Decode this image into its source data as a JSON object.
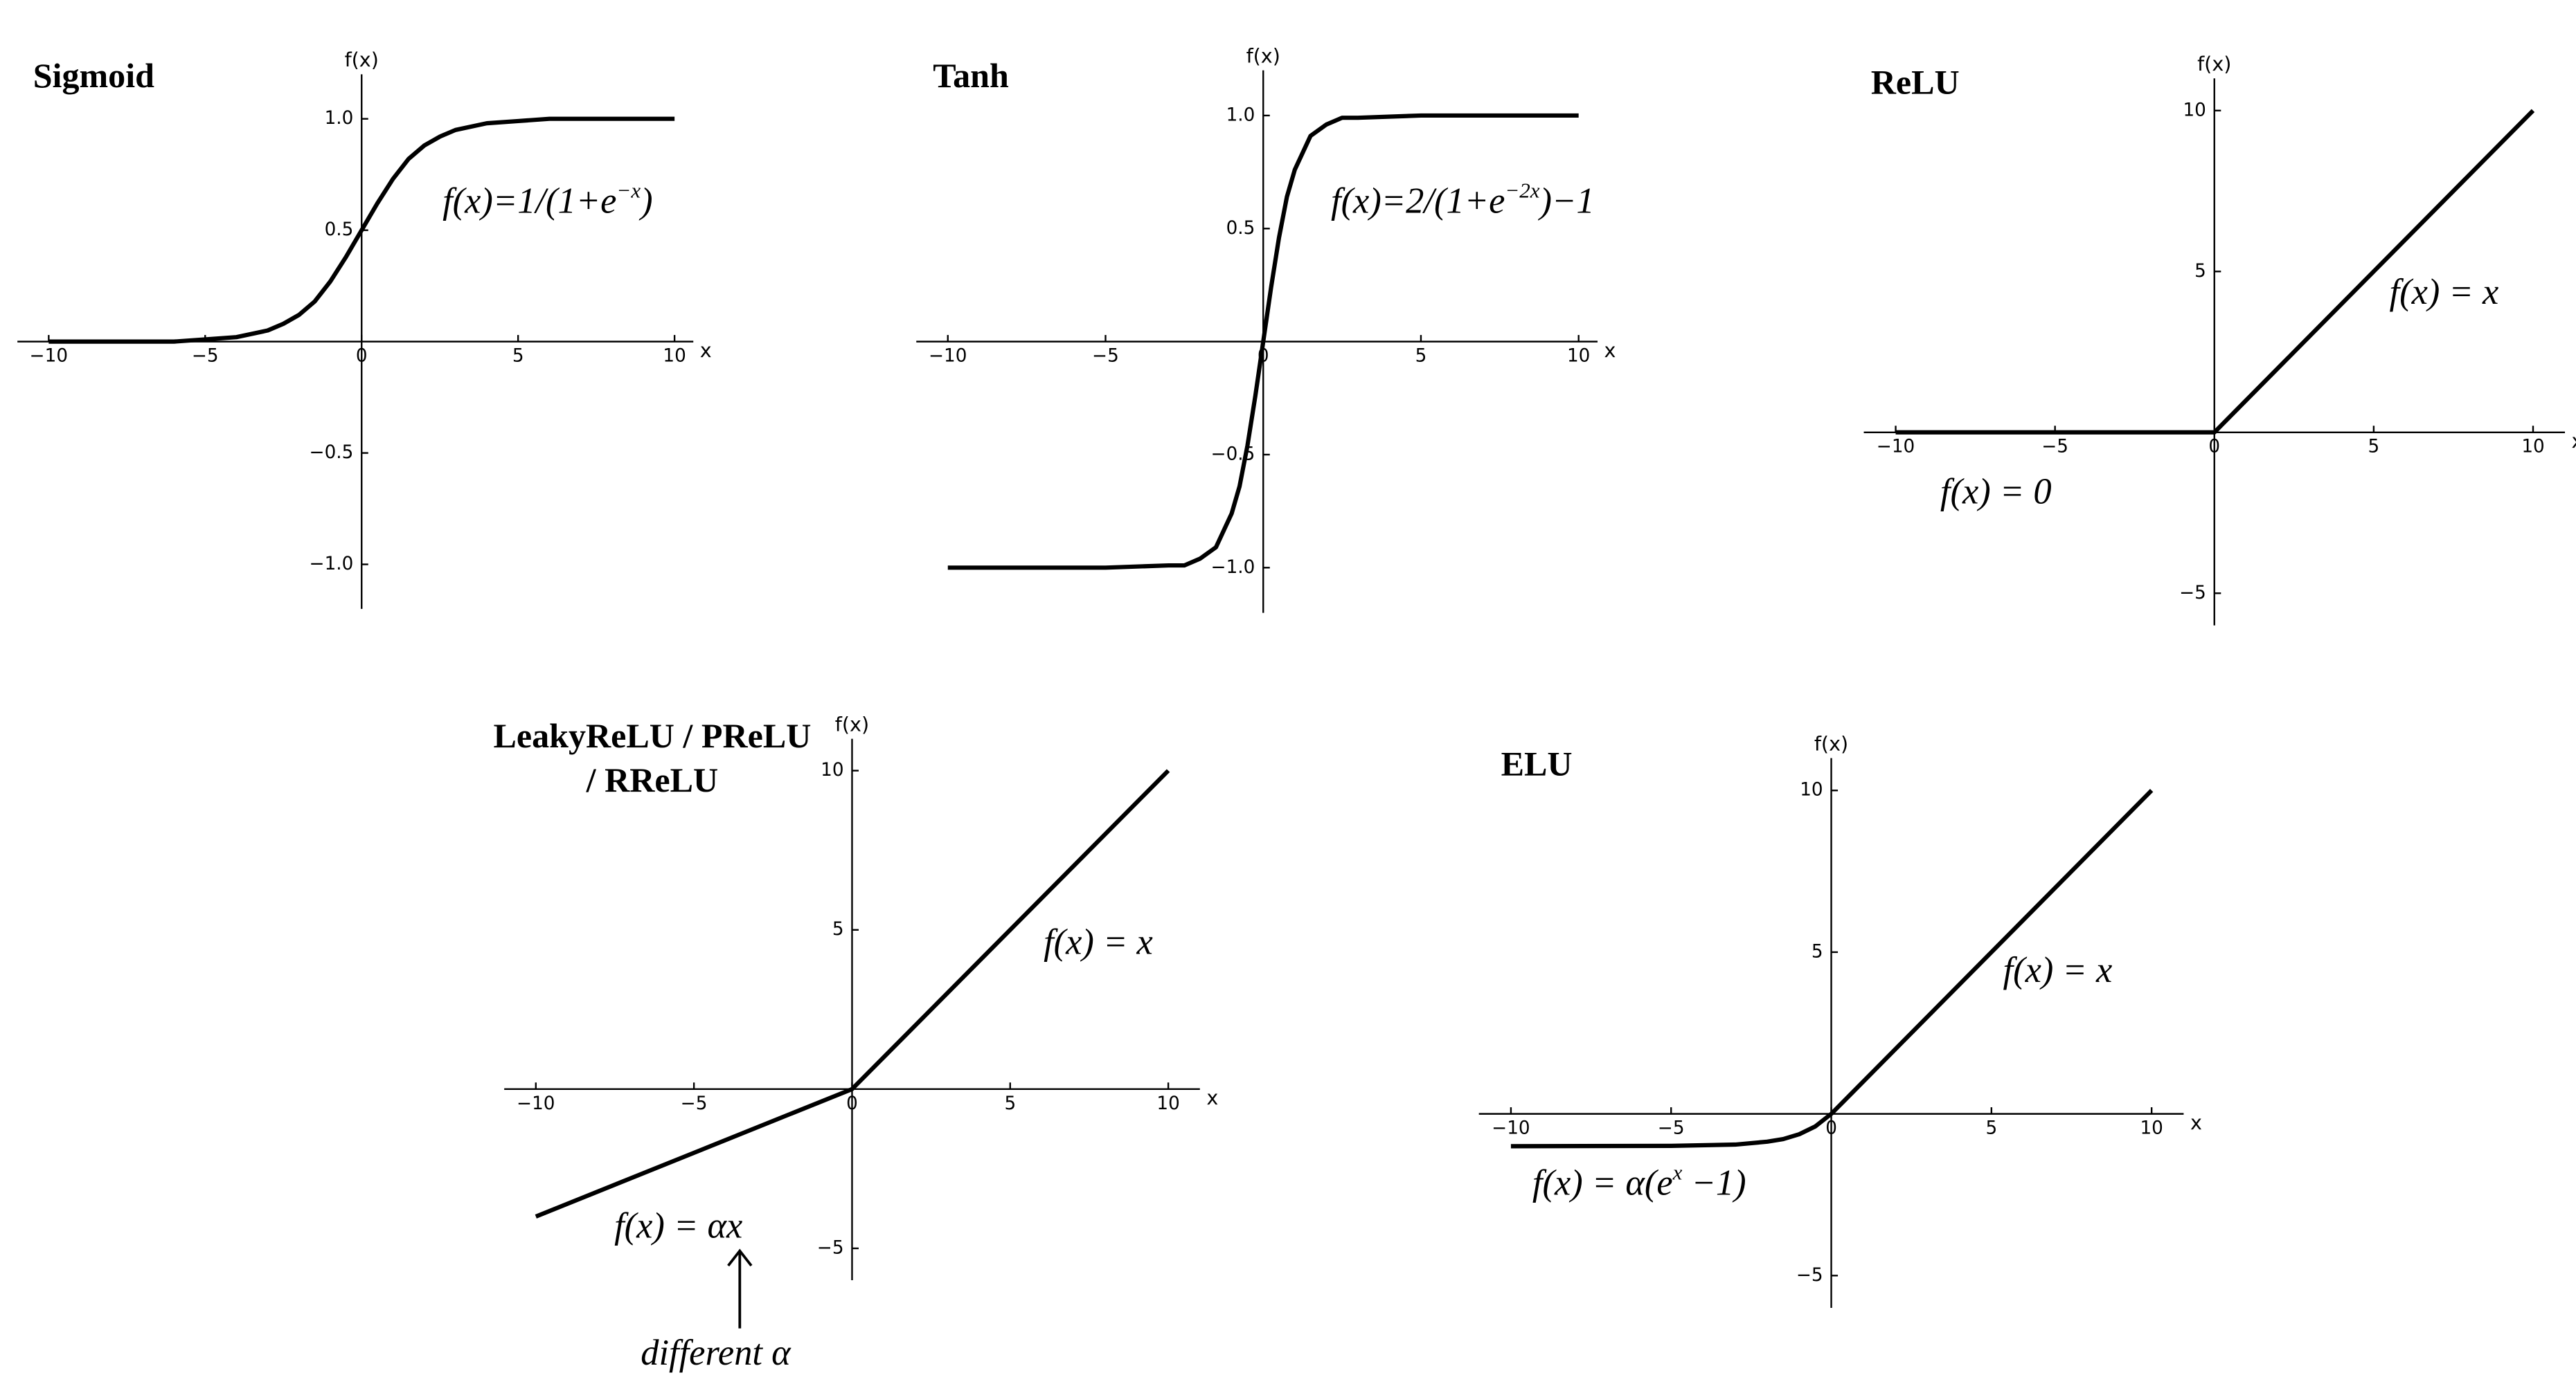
{
  "chart_data": [
    {
      "type": "line",
      "title": "Sigmoid",
      "xlabel": "x",
      "ylabel": "f(x)",
      "color": "#000000",
      "x": [
        -10,
        -8,
        -6,
        -5,
        -4,
        -3,
        -2.5,
        -2,
        -1.5,
        -1,
        -0.5,
        0,
        0.5,
        1,
        1.5,
        2,
        2.5,
        3,
        4,
        5,
        6,
        8,
        10
      ],
      "values": [
        0.0,
        0.0,
        0.0,
        0.01,
        0.02,
        0.05,
        0.08,
        0.12,
        0.18,
        0.27,
        0.38,
        0.5,
        0.62,
        0.73,
        0.82,
        0.88,
        0.92,
        0.95,
        0.98,
        0.99,
        1.0,
        1.0,
        1.0
      ],
      "xlim": [
        -11,
        10.6
      ],
      "ylim": [
        -1.2,
        1.2
      ],
      "xticks": [
        {
          "value": -10,
          "label": "−10"
        },
        {
          "value": -5,
          "label": "−5"
        },
        0,
        5,
        10
      ],
      "yticks": [
        {
          "value": -1,
          "label": "−1.0"
        },
        {
          "value": -0.5,
          "label": "−0.5"
        },
        0.5,
        {
          "value": 1,
          "label": "1.0"
        }
      ],
      "annotations": [
        [
          {
            "text": "f(x)=1/(1+e"
          },
          {
            "text": "−x",
            "sup": true
          },
          {
            "text": ")"
          }
        ]
      ]
    },
    {
      "type": "line",
      "title": "Tanh",
      "xlabel": "x",
      "ylabel": "f(x)",
      "color": "#000000",
      "x": [
        -10,
        -5,
        -3,
        -2.5,
        -2,
        -1.5,
        -1,
        -0.75,
        -0.5,
        -0.25,
        0,
        0.25,
        0.5,
        0.75,
        1,
        1.5,
        2,
        2.5,
        3,
        5,
        10
      ],
      "values": [
        -1.0,
        -1.0,
        -0.99,
        -0.99,
        -0.96,
        -0.91,
        -0.76,
        -0.64,
        -0.46,
        -0.24,
        0,
        0.24,
        0.46,
        0.64,
        0.76,
        0.91,
        0.96,
        0.99,
        0.99,
        1.0,
        1.0
      ],
      "xlim": [
        -11,
        10.6
      ],
      "ylim": [
        -1.2,
        1.2
      ],
      "xticks": [
        {
          "value": -10,
          "label": "−10"
        },
        {
          "value": -5,
          "label": "−5"
        },
        0,
        5,
        10
      ],
      "yticks": [
        {
          "value": -1,
          "label": "−1.0"
        },
        {
          "value": -0.5,
          "label": "−0.5"
        },
        0.5,
        {
          "value": 1,
          "label": "1.0"
        }
      ],
      "annotations": [
        [
          {
            "text": "f(x)=2/(1+e"
          },
          {
            "text": "−2x",
            "sup": true
          },
          {
            "text": ")−1"
          }
        ]
      ]
    },
    {
      "type": "line",
      "title": "ReLU",
      "xlabel": "x",
      "ylabel": "f(x)",
      "color": "#000000",
      "x": [
        -10,
        0,
        10
      ],
      "values": [
        0,
        0,
        10
      ],
      "xlim": [
        -11,
        11
      ],
      "ylim": [
        -6,
        11
      ],
      "xticks": [
        {
          "value": -10,
          "label": "−10"
        },
        {
          "value": -5,
          "label": "−5"
        },
        0,
        5,
        10
      ],
      "yticks": [
        {
          "value": -5,
          "label": "−5"
        },
        5,
        10
      ],
      "annotations": [
        [
          {
            "text": "f(x) = x"
          }
        ],
        [
          {
            "text": "f(x) = 0"
          }
        ]
      ]
    },
    {
      "type": "line",
      "title": [
        "LeakyReLU / PReLU",
        "/ RReLU"
      ],
      "xlabel": "x",
      "ylabel": "f(x)",
      "color": "#000000",
      "x": [
        -10,
        0,
        10
      ],
      "values": [
        -4,
        0,
        10
      ],
      "xlim": [
        -11,
        11
      ],
      "ylim": [
        -6,
        11
      ],
      "xticks": [
        {
          "value": -10,
          "label": "−10"
        },
        {
          "value": -5,
          "label": "−5"
        },
        0,
        5,
        10
      ],
      "yticks": [
        {
          "value": -5,
          "label": "−5"
        },
        5,
        10
      ],
      "annotations": [
        [
          {
            "text": "f(x) = x"
          }
        ],
        [
          {
            "text": "f(x) = αx"
          }
        ],
        [
          {
            "text": "different  α"
          }
        ]
      ]
    },
    {
      "type": "line",
      "title": "ELU",
      "xlabel": "x",
      "ylabel": "f(x)",
      "color": "#000000",
      "x": [
        -10,
        -5,
        -3,
        -2,
        -1.5,
        -1,
        -0.5,
        0,
        10
      ],
      "values": [
        -1.0,
        -0.99,
        -0.95,
        -0.86,
        -0.78,
        -0.63,
        -0.39,
        0,
        10
      ],
      "xlim": [
        -11,
        11
      ],
      "ylim": [
        -6,
        11
      ],
      "xticks": [
        {
          "value": -10,
          "label": "−10"
        },
        {
          "value": -5,
          "label": "−5"
        },
        0,
        5,
        10
      ],
      "yticks": [
        {
          "value": -5,
          "label": "−5"
        },
        5,
        10
      ],
      "annotations": [
        [
          {
            "text": "f(x) = x"
          }
        ],
        [
          {
            "text": "f(x) = α(e"
          },
          {
            "text": "x",
            "sup": true
          },
          {
            "text": " −1)"
          }
        ]
      ]
    }
  ]
}
